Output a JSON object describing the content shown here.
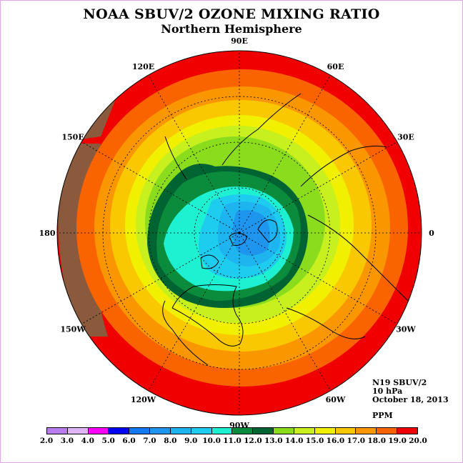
{
  "title": "NOAA SBUV/2 OZONE MIXING RATIO",
  "subtitle": "Northern Hemisphere",
  "info": {
    "satellite": "N19 SBUV/2",
    "level": "10 hPa",
    "date": "October 18, 2013",
    "units": "PPM"
  },
  "longitude_labels": [
    {
      "text": "90E",
      "lon": 90
    },
    {
      "text": "60E",
      "lon": 60
    },
    {
      "text": "30E",
      "lon": 30
    },
    {
      "text": "0",
      "lon": 0
    },
    {
      "text": "30W",
      "lon": -30
    },
    {
      "text": "60W",
      "lon": -60
    },
    {
      "text": "90W",
      "lon": -90
    },
    {
      "text": "120W",
      "lon": -120
    },
    {
      "text": "150W",
      "lon": -150
    },
    {
      "text": "180",
      "lon": 180
    },
    {
      "text": "150E",
      "lon": 150
    },
    {
      "text": "120E",
      "lon": 120
    }
  ],
  "colorbar": {
    "ticks": [
      "2.0",
      "3.0",
      "4.0",
      "5.0",
      "6.0",
      "7.0",
      "8.0",
      "9.0",
      "10.0",
      "11.0",
      "12.0",
      "13.0",
      "14.0",
      "15.0",
      "16.0",
      "17.0",
      "18.0",
      "19.0",
      "20.0"
    ],
    "colors": [
      "#b87cf0",
      "#e0b4f8",
      "#ff00ff",
      "#0000f0",
      "#1478f0",
      "#1e96f0",
      "#1eb4f0",
      "#1eccf0",
      "#1ef0d2",
      "#0a8c3c",
      "#006432",
      "#8cdc1e",
      "#c8f01e",
      "#f0f000",
      "#fac800",
      "#fa9600",
      "#fa6400",
      "#f00000",
      "#8b5a3c"
    ]
  }
}
